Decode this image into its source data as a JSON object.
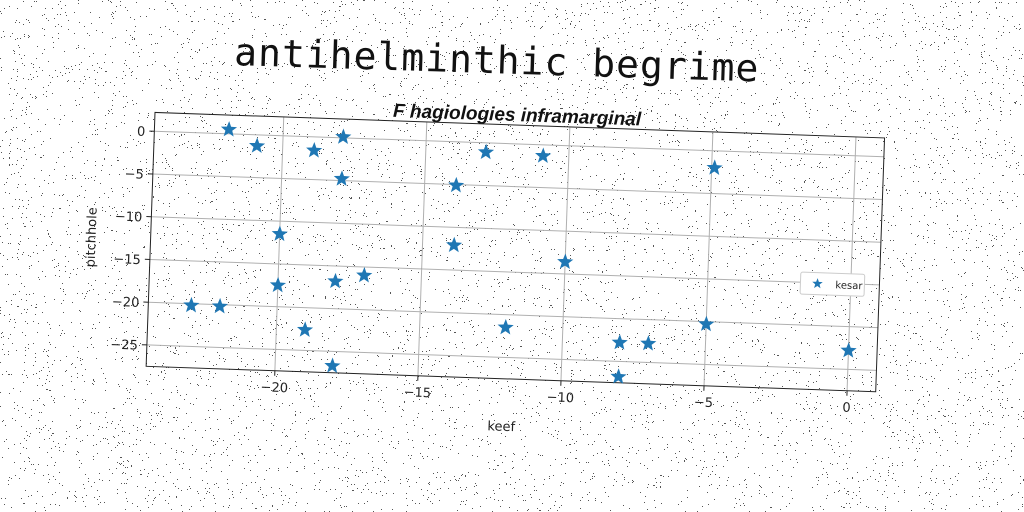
{
  "main_title": "antihelminthic begrime",
  "chart_data": {
    "type": "scatter",
    "title": "F hagiologies inframarginal",
    "xlabel": "keef",
    "ylabel": "pitchhole",
    "xlim": [
      -24.5,
      1.0
    ],
    "ylim": [
      -27.5,
      2.2
    ],
    "xticks": [
      -20,
      -15,
      -10,
      -5,
      0
    ],
    "yticks": [
      0,
      -5,
      -10,
      -15,
      -20,
      -25
    ],
    "xtick_labels": [
      "−20",
      "−15",
      "−10",
      "−5",
      "0"
    ],
    "ytick_labels": [
      "0",
      "−5",
      "−10",
      "−15",
      "−20",
      "−25"
    ],
    "grid": true,
    "legend_position": "right",
    "series": [
      {
        "name": "kesar",
        "marker": "star",
        "color": "#1f77b4",
        "points": [
          {
            "x": -21.9,
            "y": 0.5
          },
          {
            "x": -20.9,
            "y": -1.3
          },
          {
            "x": -18.9,
            "y": -1.6
          },
          {
            "x": -17.9,
            "y": 0.1
          },
          {
            "x": -17.9,
            "y": -4.8
          },
          {
            "x": -20.0,
            "y": -11.5
          },
          {
            "x": -20.0,
            "y": -17.5
          },
          {
            "x": -18.0,
            "y": -16.8
          },
          {
            "x": -17.0,
            "y": -16.0
          },
          {
            "x": -23.0,
            "y": -20.2
          },
          {
            "x": -22.0,
            "y": -20.2
          },
          {
            "x": -19.0,
            "y": -22.6
          },
          {
            "x": -18.0,
            "y": -26.7
          },
          {
            "x": -13.9,
            "y": -5.1
          },
          {
            "x": -13.9,
            "y": -12.1
          },
          {
            "x": -12.9,
            "y": -1.1
          },
          {
            "x": -10.9,
            "y": -1.3
          },
          {
            "x": -12.0,
            "y": -21.5
          },
          {
            "x": -10.0,
            "y": -13.6
          },
          {
            "x": -8.0,
            "y": -22.8
          },
          {
            "x": -7.0,
            "y": -22.8
          },
          {
            "x": -8.0,
            "y": -26.8
          },
          {
            "x": -4.9,
            "y": -2.0
          },
          {
            "x": -5.0,
            "y": -20.3
          },
          {
            "x": 0.0,
            "y": -22.8
          }
        ]
      }
    ]
  }
}
